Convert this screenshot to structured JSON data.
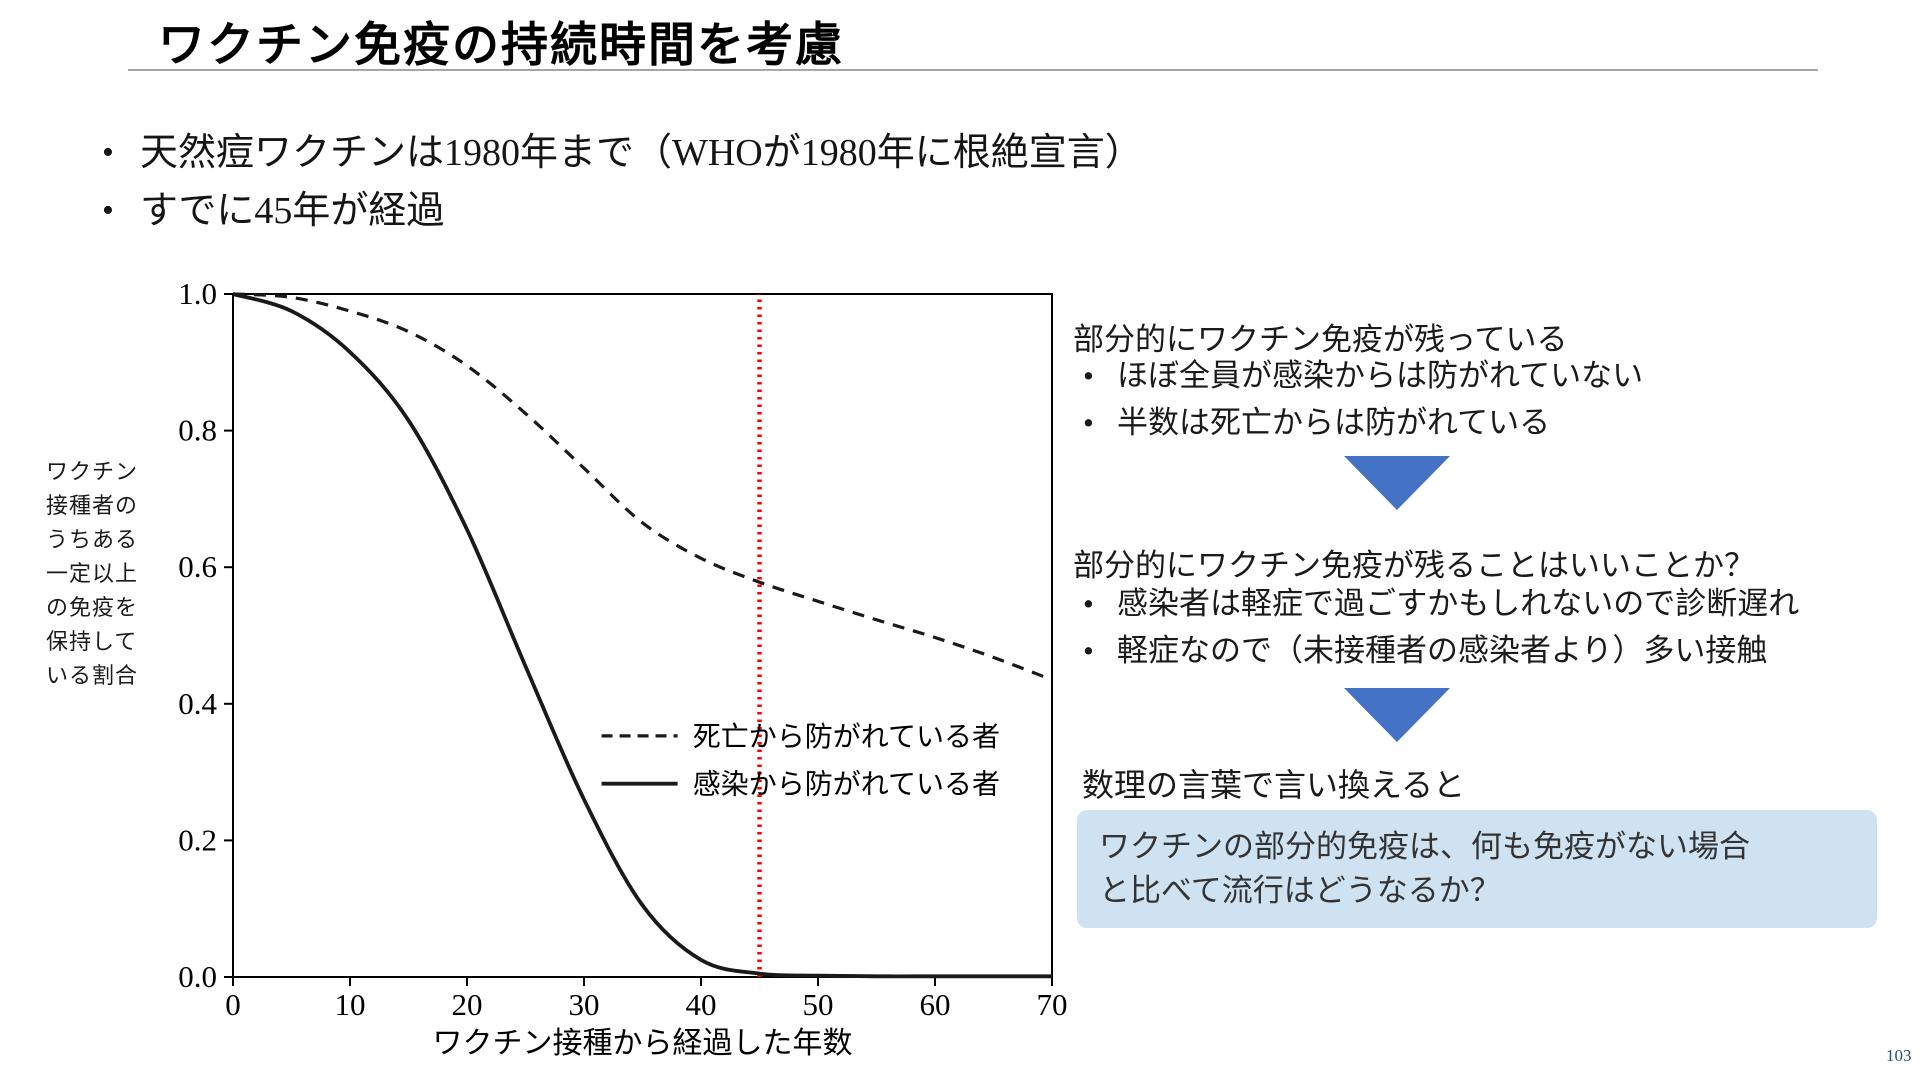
{
  "title": "ワクチン免疫の持続時間を考慮",
  "main_bullets": [
    "天然痘ワクチンは1980年まで（WHOが1980年に根絶宣言）",
    "すでに45年が経過"
  ],
  "right_panel": {
    "block1": {
      "heading": "部分的にワクチン免疫が残っている",
      "bullets": [
        "ほぼ全員が感染からは防がれていない",
        "半数は死亡からは防がれている"
      ]
    },
    "block2": {
      "heading": "部分的にワクチン免疫が残ることはいいことか？",
      "bullets": [
        "感染者は軽症で過ごすかもしれないので診断遅れ",
        "軽症なので（未接種者の感染者より）多い接触"
      ]
    },
    "reframe_label": "数理の言葉で言い換えると",
    "question_box": {
      "lines": [
        "ワクチンの部分的免疫は、何も免疫がない場合",
        "と比べて流行はどうなるか？"
      ],
      "bg_color": "#cfe2f1"
    },
    "arrow_color": "#4472c4"
  },
  "page_number": "103",
  "chart_data": {
    "type": "line",
    "title": "",
    "xlabel": "ワクチン接種から経過した年数",
    "ylabel": "ワクチン接種者のうちある一定以上の免疫を保持している割合",
    "ylabel_lines": [
      "ワクチン",
      "接種者の",
      "うちある",
      "一定以上",
      "の免疫を",
      "保持して",
      "いる割合"
    ],
    "xlim": [
      0,
      70
    ],
    "ylim": [
      0,
      1
    ],
    "xticks": [
      0,
      10,
      20,
      30,
      40,
      50,
      60,
      70
    ],
    "yticks": [
      0,
      0.2,
      0.4,
      0.6,
      0.8,
      1
    ],
    "ytick_labels": [
      "0.0",
      "0.2",
      "0.4",
      "0.6",
      "0.8",
      "1.0"
    ],
    "grid": false,
    "legend_position": "inside-center-right",
    "series": [
      {
        "name": "死亡から防がれている者",
        "style": "dashed",
        "color": "#1a1a1a",
        "x": [
          0,
          5,
          10,
          15,
          20,
          25,
          30,
          35,
          40,
          45,
          50,
          55,
          60,
          65,
          70
        ],
        "y": [
          1.0,
          0.995,
          0.975,
          0.945,
          0.895,
          0.825,
          0.745,
          0.665,
          0.613,
          0.578,
          0.55,
          0.523,
          0.497,
          0.468,
          0.435
        ]
      },
      {
        "name": "感染から防がれている者",
        "style": "solid",
        "color": "#1a1a1a",
        "x": [
          0,
          5,
          10,
          15,
          20,
          25,
          30,
          35,
          40,
          45,
          50,
          55,
          60,
          65,
          70
        ],
        "y": [
          1.0,
          0.975,
          0.915,
          0.815,
          0.655,
          0.455,
          0.26,
          0.105,
          0.025,
          0.005,
          0.002,
          0.001,
          0.001,
          0.001,
          0.001
        ]
      }
    ],
    "vline": {
      "x": 45,
      "color": "#ff0000",
      "style": "dotted"
    },
    "legend": {
      "sample_x": [
        31.5,
        38
      ],
      "text_x": 39.3,
      "rows": [
        {
          "series": 0,
          "y": 0.353
        },
        {
          "series": 1,
          "y": 0.283
        }
      ]
    }
  }
}
